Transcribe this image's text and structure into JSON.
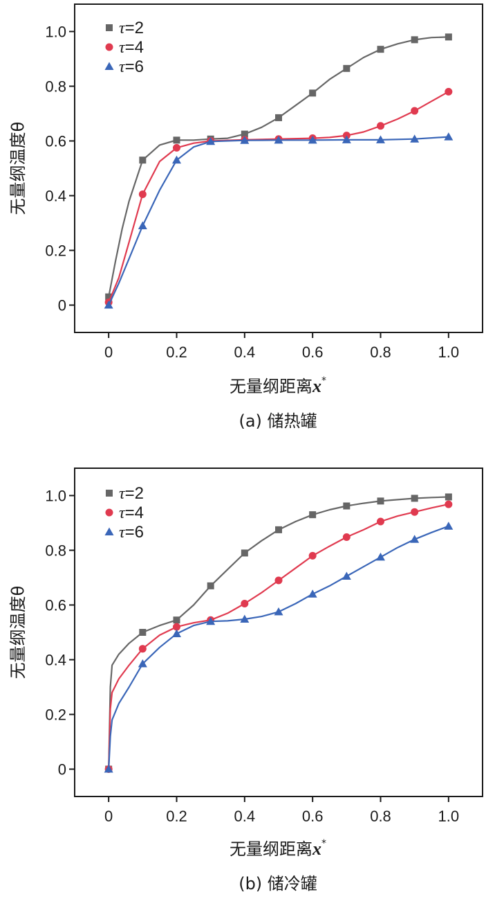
{
  "chart_data": [
    {
      "type": "line",
      "caption": "(a) 储热罐",
      "xlabel": "无量纲距离",
      "xlabel_var": "x",
      "xlabel_sup": "*",
      "ylabel": "无量纲温度θ",
      "xlim": [
        -0.1,
        1.1
      ],
      "ylim": [
        -0.1,
        1.1
      ],
      "xticks": [
        0,
        0.2,
        0.4,
        0.6,
        0.8,
        1.0
      ],
      "xtick_labels": [
        "0",
        "0.2",
        "0.4",
        "0.6",
        "0.8",
        "1.0"
      ],
      "yticks": [
        0,
        0.2,
        0.4,
        0.6,
        0.8,
        1.0
      ],
      "ytick_labels": [
        "0",
        "0.2",
        "0.4",
        "0.6",
        "0.8",
        "1.0"
      ],
      "legend_position": "top-left",
      "series": [
        {
          "name": "τ=2",
          "symbol": "τ",
          "value_label": "=2",
          "marker": "square",
          "color": "#666666",
          "x": [
            0,
            0.02,
            0.04,
            0.06,
            0.1,
            0.15,
            0.2,
            0.25,
            0.3,
            0.35,
            0.4,
            0.45,
            0.5,
            0.55,
            0.6,
            0.65,
            0.7,
            0.75,
            0.8,
            0.85,
            0.9,
            0.95,
            1.0
          ],
          "y": [
            0.03,
            0.16,
            0.28,
            0.38,
            0.53,
            0.585,
            0.603,
            0.603,
            0.607,
            0.61,
            0.625,
            0.65,
            0.685,
            0.73,
            0.775,
            0.825,
            0.865,
            0.905,
            0.935,
            0.955,
            0.97,
            0.978,
            0.98
          ],
          "marker_x": [
            0,
            0.1,
            0.2,
            0.3,
            0.4,
            0.5,
            0.6,
            0.7,
            0.8,
            0.9,
            1.0
          ],
          "marker_y": [
            0.03,
            0.53,
            0.603,
            0.607,
            0.625,
            0.685,
            0.775,
            0.865,
            0.935,
            0.97,
            0.98
          ]
        },
        {
          "name": "τ=4",
          "symbol": "τ",
          "value_label": "=4",
          "marker": "circle",
          "color": "#e03a4f",
          "x": [
            0,
            0.03,
            0.06,
            0.1,
            0.15,
            0.2,
            0.25,
            0.3,
            0.4,
            0.5,
            0.6,
            0.65,
            0.7,
            0.75,
            0.8,
            0.85,
            0.9,
            0.95,
            1.0
          ],
          "y": [
            0.01,
            0.1,
            0.23,
            0.405,
            0.525,
            0.575,
            0.592,
            0.6,
            0.604,
            0.607,
            0.61,
            0.613,
            0.62,
            0.633,
            0.655,
            0.68,
            0.71,
            0.745,
            0.78
          ],
          "marker_x": [
            0,
            0.1,
            0.2,
            0.3,
            0.4,
            0.5,
            0.6,
            0.7,
            0.8,
            0.9,
            1.0
          ],
          "marker_y": [
            0.01,
            0.405,
            0.575,
            0.6,
            0.604,
            0.607,
            0.61,
            0.62,
            0.655,
            0.71,
            0.78
          ]
        },
        {
          "name": "τ=6",
          "symbol": "τ",
          "value_label": "=6",
          "marker": "triangle",
          "color": "#3a66b8",
          "x": [
            0,
            0.03,
            0.06,
            0.1,
            0.15,
            0.2,
            0.25,
            0.3,
            0.4,
            0.5,
            0.6,
            0.7,
            0.8,
            0.9,
            1.0
          ],
          "y": [
            0,
            0.08,
            0.17,
            0.29,
            0.42,
            0.53,
            0.578,
            0.598,
            0.602,
            0.603,
            0.603,
            0.604,
            0.604,
            0.607,
            0.615
          ],
          "marker_x": [
            0,
            0.1,
            0.2,
            0.3,
            0.4,
            0.5,
            0.6,
            0.7,
            0.8,
            0.9,
            1.0
          ],
          "marker_y": [
            0,
            0.29,
            0.53,
            0.598,
            0.602,
            0.603,
            0.603,
            0.604,
            0.604,
            0.607,
            0.615
          ]
        }
      ]
    },
    {
      "type": "line",
      "caption": "(b) 储冷罐",
      "xlabel": "无量纲距离",
      "xlabel_var": "x",
      "xlabel_sup": "*",
      "ylabel": "无量纲温度θ",
      "xlim": [
        -0.1,
        1.1
      ],
      "ylim": [
        -0.1,
        1.1
      ],
      "xticks": [
        0,
        0.2,
        0.4,
        0.6,
        0.8,
        1.0
      ],
      "xtick_labels": [
        "0",
        "0.2",
        "0.4",
        "0.6",
        "0.8",
        "1.0"
      ],
      "yticks": [
        0,
        0.2,
        0.4,
        0.6,
        0.8,
        1.0
      ],
      "ytick_labels": [
        "0",
        "0.2",
        "0.4",
        "0.6",
        "0.8",
        "1.0"
      ],
      "legend_position": "top-left",
      "series": [
        {
          "name": "τ=2",
          "symbol": "τ",
          "value_label": "=2",
          "marker": "square",
          "color": "#666666",
          "x": [
            0,
            0.005,
            0.01,
            0.03,
            0.06,
            0.1,
            0.15,
            0.2,
            0.25,
            0.3,
            0.35,
            0.4,
            0.45,
            0.5,
            0.55,
            0.6,
            0.65,
            0.7,
            0.75,
            0.8,
            0.85,
            0.9,
            0.95,
            1.0
          ],
          "y": [
            0,
            0.3,
            0.38,
            0.42,
            0.46,
            0.5,
            0.525,
            0.545,
            0.6,
            0.67,
            0.73,
            0.79,
            0.835,
            0.875,
            0.905,
            0.93,
            0.948,
            0.962,
            0.972,
            0.98,
            0.985,
            0.99,
            0.993,
            0.995
          ],
          "marker_x": [
            0,
            0.1,
            0.2,
            0.3,
            0.4,
            0.5,
            0.6,
            0.7,
            0.8,
            0.9,
            1.0
          ],
          "marker_y": [
            0,
            0.5,
            0.545,
            0.67,
            0.79,
            0.875,
            0.93,
            0.962,
            0.98,
            0.99,
            0.995
          ]
        },
        {
          "name": "τ=4",
          "symbol": "τ",
          "value_label": "=4",
          "marker": "circle",
          "color": "#e03a4f",
          "x": [
            0,
            0.005,
            0.01,
            0.03,
            0.06,
            0.1,
            0.15,
            0.2,
            0.25,
            0.3,
            0.35,
            0.4,
            0.45,
            0.5,
            0.55,
            0.6,
            0.65,
            0.7,
            0.75,
            0.8,
            0.85,
            0.9,
            0.95,
            1.0
          ],
          "y": [
            0,
            0.22,
            0.28,
            0.33,
            0.38,
            0.44,
            0.49,
            0.52,
            0.535,
            0.545,
            0.57,
            0.605,
            0.645,
            0.69,
            0.735,
            0.78,
            0.815,
            0.848,
            0.875,
            0.905,
            0.925,
            0.94,
            0.955,
            0.968
          ],
          "marker_x": [
            0,
            0.1,
            0.2,
            0.3,
            0.4,
            0.5,
            0.6,
            0.7,
            0.8,
            0.9,
            1.0
          ],
          "marker_y": [
            0,
            0.44,
            0.52,
            0.545,
            0.605,
            0.69,
            0.78,
            0.848,
            0.905,
            0.94,
            0.968
          ]
        },
        {
          "name": "τ=6",
          "symbol": "τ",
          "value_label": "=6",
          "marker": "triangle",
          "color": "#3a66b8",
          "x": [
            0,
            0.005,
            0.01,
            0.03,
            0.06,
            0.1,
            0.15,
            0.2,
            0.25,
            0.3,
            0.35,
            0.4,
            0.45,
            0.5,
            0.55,
            0.6,
            0.65,
            0.7,
            0.75,
            0.8,
            0.85,
            0.9,
            0.95,
            1.0
          ],
          "y": [
            0,
            0.12,
            0.18,
            0.24,
            0.3,
            0.385,
            0.445,
            0.495,
            0.525,
            0.54,
            0.542,
            0.548,
            0.558,
            0.575,
            0.605,
            0.64,
            0.67,
            0.705,
            0.74,
            0.775,
            0.81,
            0.84,
            0.865,
            0.888
          ],
          "marker_x": [
            0,
            0.1,
            0.2,
            0.3,
            0.4,
            0.5,
            0.6,
            0.7,
            0.8,
            0.9,
            1.0
          ],
          "marker_y": [
            0,
            0.385,
            0.495,
            0.54,
            0.548,
            0.575,
            0.64,
            0.705,
            0.775,
            0.84,
            0.888
          ]
        }
      ]
    }
  ]
}
